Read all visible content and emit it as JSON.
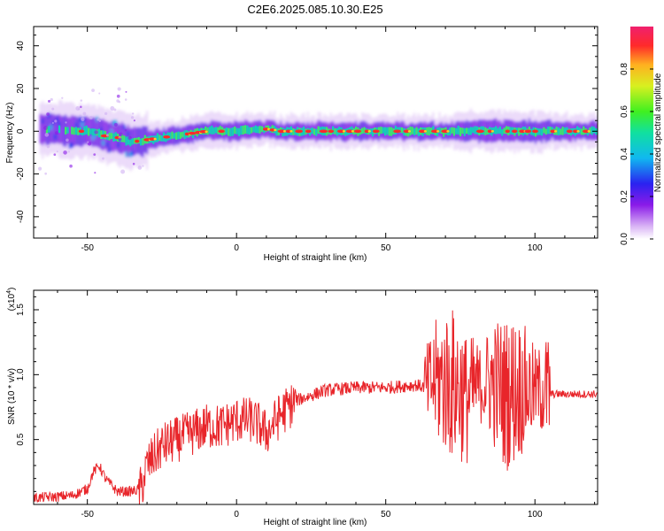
{
  "title": "C2E6.2025.085.10.30.E25",
  "colors": {
    "trace": "#e8252a",
    "frame": "#000000"
  },
  "chart_data": [
    {
      "type": "heatmap",
      "xlabel": "Height of straight line (km)",
      "ylabel": "Frequency (Hz)",
      "xlim": [
        -68,
        121
      ],
      "ylim": [
        -50,
        49
      ],
      "x_ticks": [
        -50,
        0,
        50,
        100
      ],
      "x_tick_labels": [
        "-50",
        "0",
        "50",
        "100"
      ],
      "y_ticks": [
        -40,
        -20,
        0,
        20,
        40
      ],
      "y_tick_labels": [
        "-40",
        "-20",
        "0",
        "20",
        "40"
      ],
      "ridge": {
        "x": [
          -60,
          -55,
          -50,
          -45,
          -40,
          -35,
          -30,
          -25,
          -20,
          -15,
          -10,
          -5,
          0,
          5,
          10,
          15,
          20,
          30,
          40,
          50,
          60,
          70,
          80,
          90,
          100,
          110,
          120
        ],
        "freq": [
          1,
          0,
          0,
          -2,
          -3,
          -5,
          -4,
          -3,
          -2,
          -1,
          0,
          0,
          0,
          1,
          1,
          0,
          0,
          0,
          0,
          0,
          0,
          0,
          0,
          0,
          0,
          0,
          0
        ]
      },
      "colorbar": {
        "label": "Normalized spectral amplitude",
        "range": [
          0,
          1
        ],
        "ticks": [
          0.0,
          0.2,
          0.4,
          0.6,
          0.8
        ],
        "tick_labels": [
          "0.0",
          "0.2",
          "0.4",
          "0.6",
          "0.8"
        ]
      }
    },
    {
      "type": "line",
      "xlabel": "Height of straight line (km)",
      "ylabel": "SNR (10 * v/v)",
      "exponent_label": "(x10",
      "exponent_power": "4",
      "exponent_close": ")",
      "xlim": [
        -68,
        121
      ],
      "ylim": [
        0,
        1.65
      ],
      "x_ticks": [
        -50,
        0,
        50,
        100
      ],
      "x_tick_labels": [
        "-50",
        "0",
        "50",
        "100"
      ],
      "y_ticks": [
        0.5,
        1.0,
        1.5
      ],
      "y_tick_labels": [
        "0.5",
        "1.0",
        "1.5"
      ],
      "series": [
        {
          "x": [
            -68,
            -60,
            -55,
            -50,
            -48,
            -46,
            -44,
            -40,
            -35,
            -32,
            -30,
            -25,
            -20,
            -15,
            -10,
            -5,
            0,
            5,
            8,
            10,
            15,
            20,
            30,
            40,
            50,
            60,
            64,
            66,
            70,
            75,
            77,
            80,
            85,
            88,
            90,
            95,
            100,
            103,
            105,
            110,
            121
          ],
          "y": [
            0.05,
            0.06,
            0.07,
            0.12,
            0.25,
            0.3,
            0.2,
            0.1,
            0.1,
            0.12,
            0.3,
            0.45,
            0.5,
            0.55,
            0.6,
            0.6,
            0.65,
            0.65,
            0.6,
            0.55,
            0.7,
            0.8,
            0.88,
            0.9,
            0.9,
            0.92,
            0.9,
            0.95,
            0.95,
            0.9,
            0.8,
            0.9,
            0.95,
            0.9,
            0.85,
            0.9,
            0.88,
            0.9,
            0.85,
            0.85,
            0.85
          ]
        }
      ]
    }
  ]
}
